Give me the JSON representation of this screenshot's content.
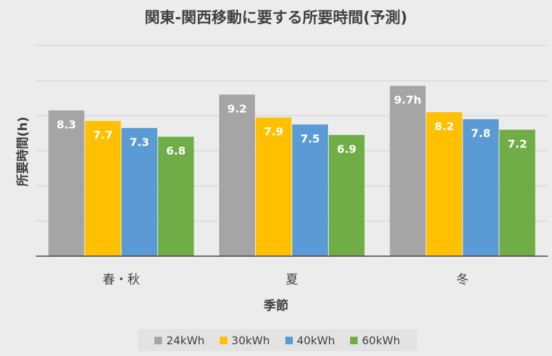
{
  "chart_data": {
    "type": "bar",
    "title": "関東-関西移動に要する所要時間(予測)",
    "xlabel": "季節",
    "ylabel": "所要時間(h)",
    "categories": [
      "春・秋",
      "夏",
      "冬"
    ],
    "series": [
      {
        "name": "24kWh",
        "color": "#a5a5a5",
        "values": [
          8.3,
          9.2,
          9.7
        ],
        "labels": [
          "8.3",
          "9.2",
          "9.7h"
        ]
      },
      {
        "name": "30kWh",
        "color": "#ffc000",
        "values": [
          7.7,
          7.9,
          8.2
        ],
        "labels": [
          "7.7",
          "7.9",
          "8.2"
        ]
      },
      {
        "name": "40kWh",
        "color": "#5b9bd5",
        "values": [
          7.3,
          7.5,
          7.8
        ],
        "labels": [
          "7.3",
          "7.5",
          "7.8"
        ]
      },
      {
        "name": "60kWh",
        "color": "#70ad47",
        "values": [
          6.8,
          6.9,
          7.2
        ],
        "labels": [
          "6.8",
          "6.9",
          "7.2"
        ]
      }
    ],
    "ylim": [
      0,
      12
    ],
    "grid": true,
    "legend_position": "bottom"
  }
}
